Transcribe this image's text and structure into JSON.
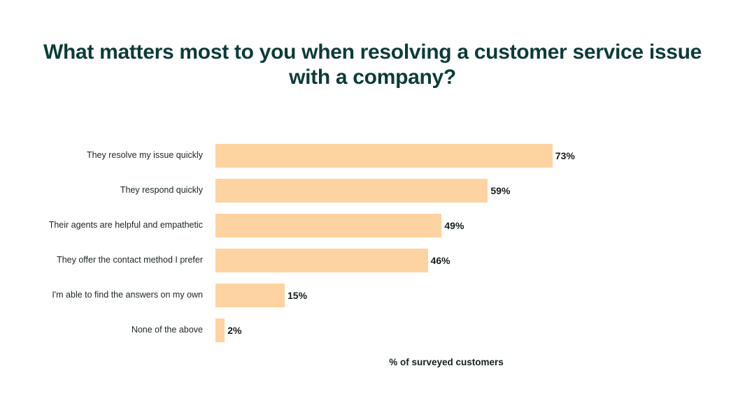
{
  "title": {
    "text": "What matters most to you when resolving a customer service issue with a company?",
    "color": "#0d3c38"
  },
  "chart_data": {
    "type": "bar",
    "orientation": "horizontal",
    "title": "What matters most to you when resolving a customer service issue with a company?",
    "categories": [
      "They resolve my issue quickly",
      "They respond quickly",
      "Their agents are helpful and empathetic",
      "They offer the contact method I prefer",
      "I'm able to find the answers on my own",
      "None of the above"
    ],
    "values": [
      73,
      59,
      49,
      46,
      15,
      2
    ],
    "value_labels": [
      "73%",
      "59%",
      "49%",
      "46%",
      "15%",
      "2%"
    ],
    "xlabel": "% of surveyed customers",
    "xlim": [
      0,
      100
    ],
    "grid": false,
    "legend": "none",
    "bar_color": "#fdd3a1",
    "title_color": "#0d3c38",
    "category_label_color": "#1b2623",
    "value_label_color": "#161d1b"
  }
}
